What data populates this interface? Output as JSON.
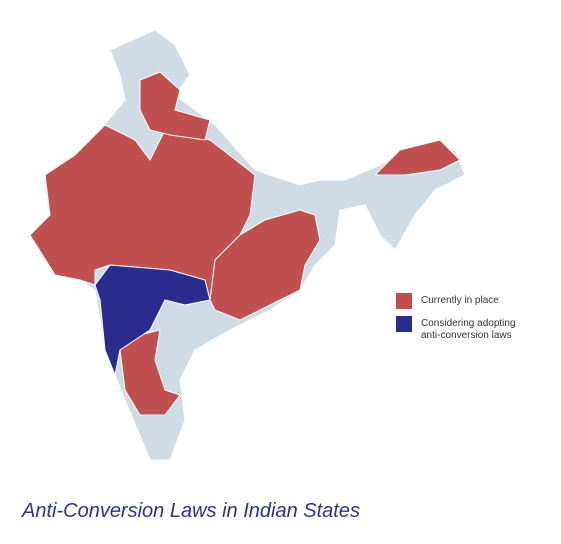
{
  "title": "Anti-Conversion Laws in Indian States",
  "legend": [
    {
      "label": "Currently in place",
      "color": "#c0504f"
    },
    {
      "label": "Considering adopting anti-conversion laws",
      "color": "#2b2d8e"
    }
  ]
}
